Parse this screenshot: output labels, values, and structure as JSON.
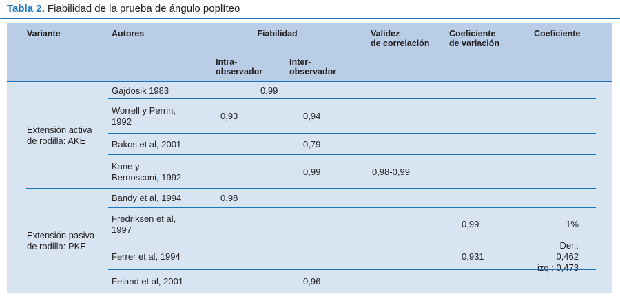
{
  "title": {
    "label": "Tabla 2.",
    "text": "Fiabilidad de la prueba de ángulo poplíteo"
  },
  "colors": {
    "accent_blue": "#1b75bc",
    "header_bg": "#b9cee6",
    "body_bg": "#d8e4f2",
    "text_color": "#231f20"
  },
  "table": {
    "columns": {
      "variante": "Variante",
      "autores": "Autores",
      "fiabilidad": "Fiabilidad",
      "intra": "Intra-\nobservador",
      "inter": "Inter-\nobservador",
      "validez": "Validez\nde correlación",
      "coef_variacion": "Coeficiente\nde variación",
      "coeficiente": "Coeficiente"
    },
    "groups": [
      {
        "variante": "Extensión activa\nde rodilla: AKE",
        "rows": [
          {
            "autores": "Gajdosik 1983",
            "intra": "0,99",
            "intra_shift": true
          },
          {
            "autores": "Worrell y Perrin,\n1992",
            "intra": "0,93",
            "inter": "0,94"
          },
          {
            "autores": "Rakos et al, 2001",
            "inter": "0,79"
          },
          {
            "autores": "Kane y\nBernosconi, 1992",
            "inter": "0,99",
            "validez": "0,98-0,99"
          }
        ]
      },
      {
        "variante": "Extensión pasiva\nde rodilla: PKE",
        "rows": [
          {
            "autores": "Bandy et al, 1994",
            "intra": "0,98"
          },
          {
            "autores": "Fredriksen et al,\n1997",
            "coefvar": "0,99",
            "coef": "1%"
          },
          {
            "autores": "Ferrer et al, 1994",
            "coefvar": "0,931",
            "coef": "Der.: 0,462\nizq.: 0,473"
          },
          {
            "autores": "Feland et al, 2001",
            "inter": "0,96"
          }
        ]
      }
    ]
  }
}
